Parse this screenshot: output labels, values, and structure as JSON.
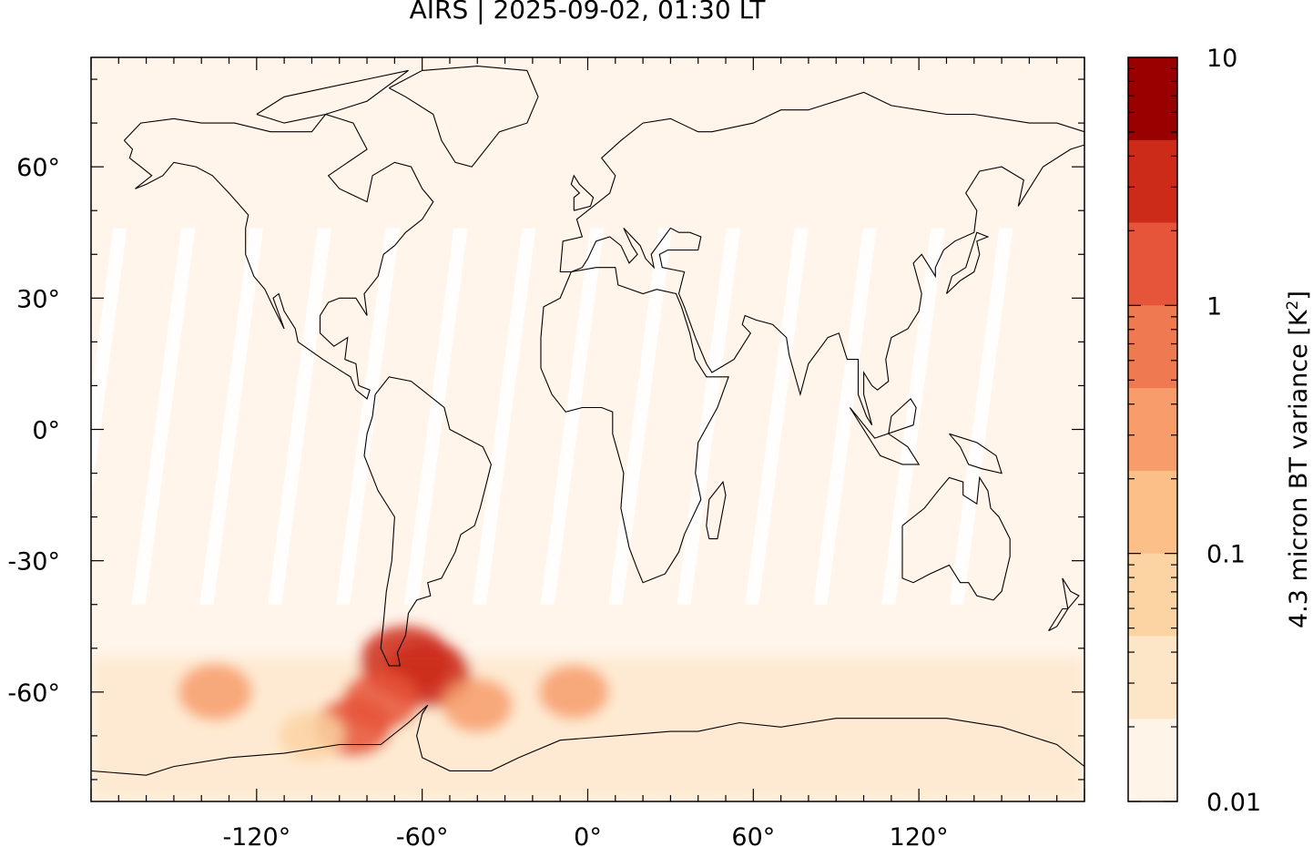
{
  "title": "AIRS | 2025-09-02, 01:30 LT",
  "map": {
    "lon_range": [
      -180,
      180
    ],
    "lat_range": [
      -85,
      85
    ],
    "y_ticks": [
      "60°",
      "30°",
      "0°",
      "-30°",
      "-60°"
    ],
    "y_tick_values": [
      60,
      30,
      0,
      -30,
      -60
    ],
    "x_ticks": [
      "-120°",
      "-60°",
      "0°",
      "60°",
      "120°"
    ],
    "x_tick_values": [
      -120,
      -60,
      0,
      60,
      120
    ],
    "background_color": "#fff5eb",
    "coastline_color": "#000000"
  },
  "colorbar": {
    "label_prefix": "4.3 micron BT variance [K",
    "label_sup": "2",
    "label_suffix": "]",
    "scale": "log",
    "ticks": [
      "10",
      "1",
      "0.1",
      "0.01"
    ],
    "tick_values": [
      10,
      1,
      0.1,
      0.01
    ],
    "colors": [
      "#fff5eb",
      "#fee6ce",
      "#fdd0a2",
      "#fdae6b",
      "#fd8d3c",
      "#f16913",
      "#e6550d",
      "#d94801",
      "#a63603",
      "#7f2704"
    ],
    "band_colors_top_to_bottom": [
      "#990000",
      "#cc2b1a",
      "#e6553a",
      "#ef7a52",
      "#f79d6c",
      "#fbbf87",
      "#fcd3a3",
      "#fde6c8",
      "#fff4e8"
    ]
  },
  "chart_data": {
    "type": "heatmap",
    "title": "AIRS | 2025-09-02, 01:30 LT",
    "xlabel": "",
    "ylabel": "",
    "xlim": [
      -180,
      180
    ],
    "ylim": [
      -85,
      85
    ],
    "colorbar_label": "4.3 micron BT variance [K2]",
    "colorbar_range": [
      0.01,
      10
    ],
    "hotspots": [
      {
        "lon": -66,
        "lat": -53,
        "value": 3
      },
      {
        "lon": -58,
        "lat": -56,
        "value": 2
      },
      {
        "lon": -75,
        "lat": -62,
        "value": 1
      },
      {
        "lon": -85,
        "lat": -68,
        "value": 1
      },
      {
        "lon": -135,
        "lat": -60,
        "value": 0.8
      },
      {
        "lon": -40,
        "lat": -63,
        "value": 0.6
      },
      {
        "lon": -5,
        "lat": -60,
        "value": 0.6
      },
      {
        "lon": -100,
        "lat": -70,
        "value": 0.4
      }
    ]
  }
}
